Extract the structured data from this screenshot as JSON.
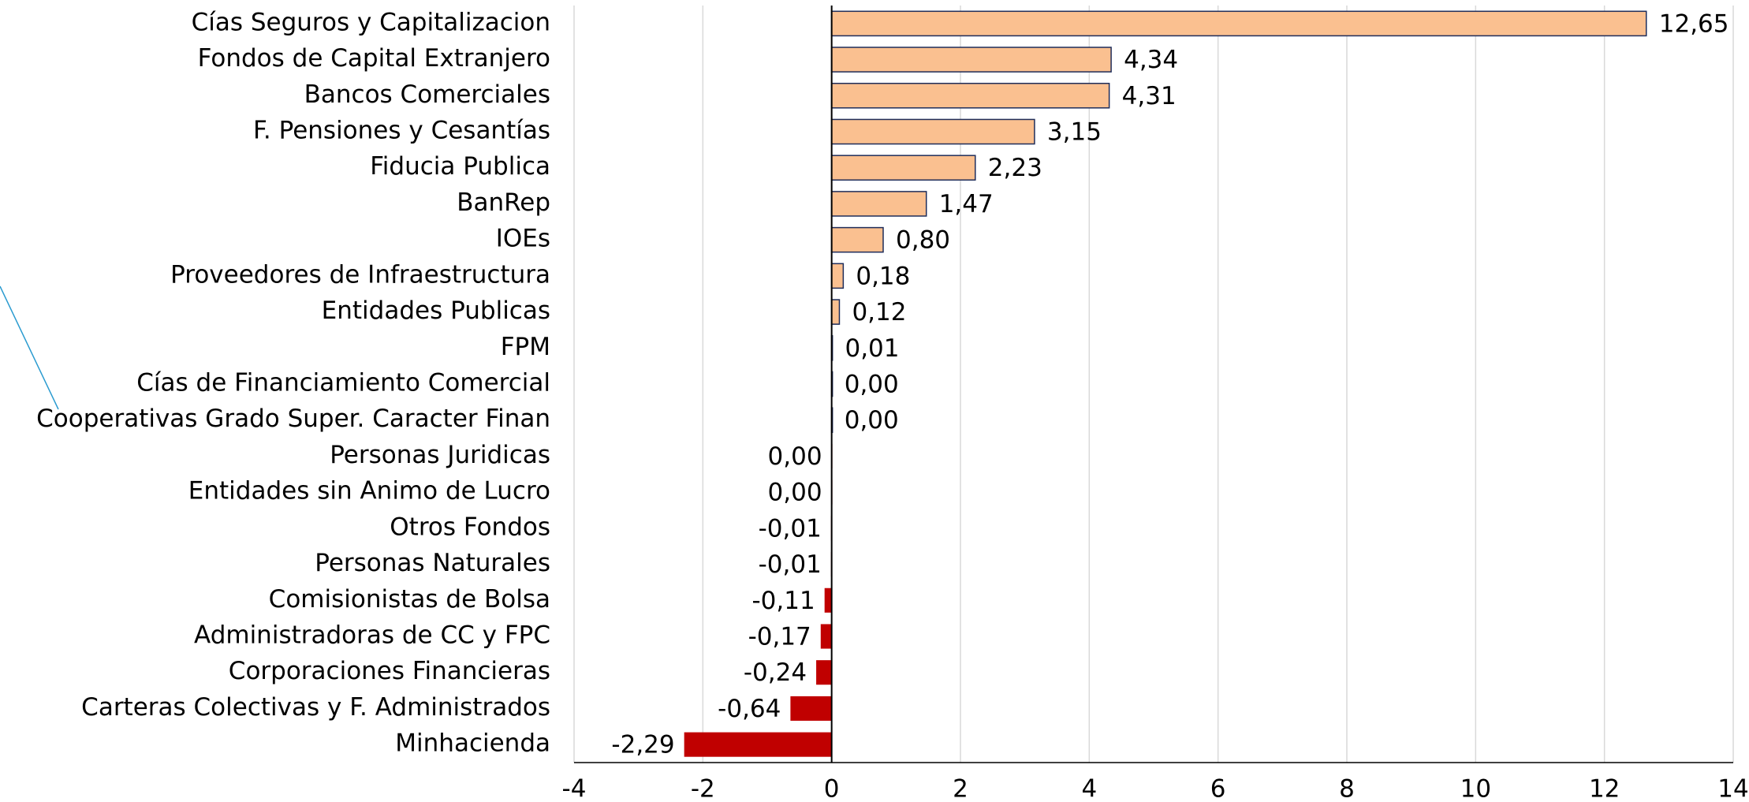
{
  "chart_data": {
    "type": "barh",
    "categories": [
      "Cías Seguros y Capitalizacion",
      "Fondos de Capital Extranjero",
      "Bancos Comerciales",
      "F. Pensiones y Cesantías",
      "Fiducia Publica",
      "BanRep",
      "IOEs",
      "Proveedores de Infraestructura",
      "Entidades Publicas",
      "FPM",
      "Cías de Financiamiento Comercial",
      "Cooperativas Grado Super. Caracter Finan",
      "Personas Juridicas",
      "Entidades sin Animo de Lucro",
      "Otros Fondos",
      "Personas Naturales",
      "Comisionistas de Bolsa",
      "Administradoras de CC y FPC",
      "Corporaciones Financieras",
      "Carteras Colectivas y F. Administrados",
      "Minhacienda"
    ],
    "values": [
      12.65,
      4.34,
      4.31,
      3.15,
      2.23,
      1.47,
      0.8,
      0.18,
      0.12,
      0.01,
      0.001,
      0.001,
      -0.001,
      -0.001,
      -0.01,
      -0.01,
      -0.11,
      -0.17,
      -0.24,
      -0.64,
      -2.29
    ],
    "value_labels": [
      "12,65",
      "4,34",
      "4,31",
      "3,15",
      "2,23",
      "1,47",
      "0,80",
      "0,18",
      "0,12",
      "0,01",
      "0,00",
      "0,00",
      "0,00",
      "0,00",
      "-0,01",
      "-0,01",
      "-0,11",
      "-0,17",
      "-0,24",
      "-0,64",
      "-2,29"
    ],
    "positive_color": "#fac090",
    "negative_color": "#c00000",
    "bar_edge_color": "#1f2d5a",
    "xlim": [
      -4,
      14
    ],
    "xticks": [
      -4,
      -2,
      0,
      2,
      4,
      6,
      8,
      10,
      12,
      14
    ],
    "grid": true
  }
}
